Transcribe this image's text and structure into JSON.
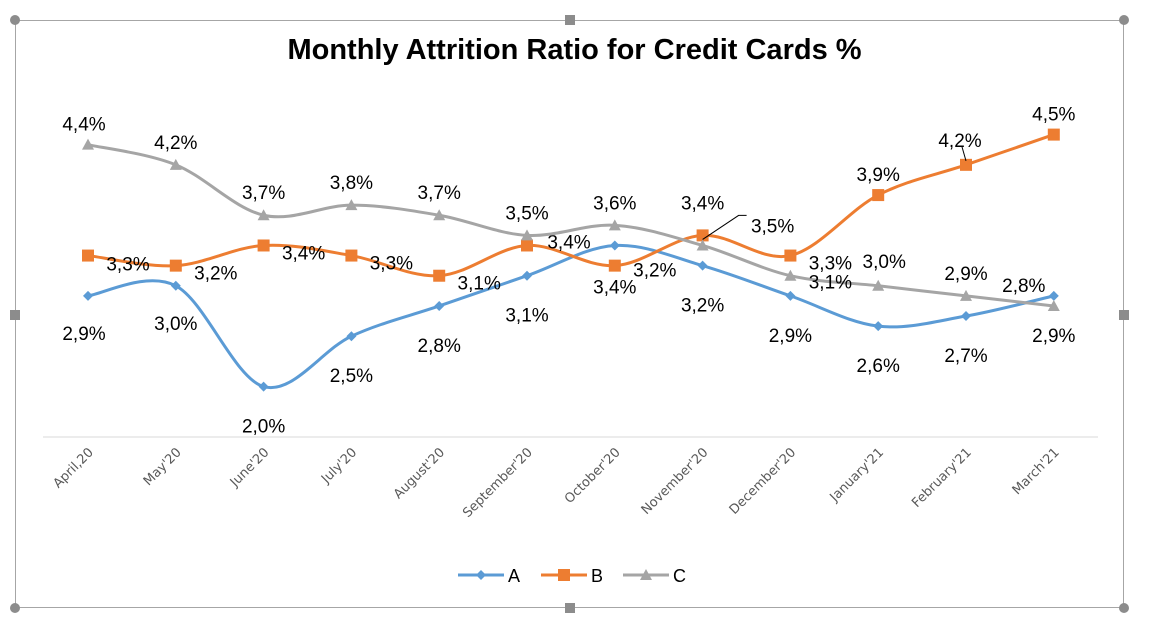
{
  "chart_data": {
    "type": "line",
    "title": "Monthly Attrition Ratio for Credit Cards %",
    "categories": [
      "April,20",
      "May'20",
      "June'20",
      "July'20",
      "August'20",
      "September'20",
      "October'20",
      "November'20",
      "December'20",
      "January'21",
      "February'21",
      "March'21"
    ],
    "ylim": [
      1.5,
      5.0
    ],
    "grid": false,
    "legend": "bottom",
    "smooth": true,
    "series": [
      {
        "name": "A",
        "color": "#5b9bd5",
        "marker": "diamond",
        "values": [
          2.9,
          3.0,
          2.0,
          2.5,
          2.8,
          3.1,
          3.4,
          3.2,
          2.9,
          2.6,
          2.7,
          2.9
        ],
        "labels": [
          "2,9%",
          "3,0%",
          "2,0%",
          "2,5%",
          "2,8%",
          "3,1%",
          "3,4%",
          "3,2%",
          "2,9%",
          "2,6%",
          "2,7%",
          "2,9%"
        ]
      },
      {
        "name": "B",
        "color": "#ed7d31",
        "marker": "square",
        "values": [
          3.3,
          3.2,
          3.4,
          3.3,
          3.1,
          3.4,
          3.2,
          3.5,
          3.3,
          3.9,
          4.2,
          4.5
        ],
        "labels": [
          "3,3%",
          "3,2%",
          "3,4%",
          "3,3%",
          "3,1%",
          "3,4%",
          "3,2%",
          "3,5%",
          "3,3%",
          "3,9%",
          "4,2%",
          "4,5%"
        ]
      },
      {
        "name": "C",
        "color": "#a5a5a5",
        "marker": "triangle",
        "values": [
          4.4,
          4.2,
          3.7,
          3.8,
          3.7,
          3.5,
          3.6,
          3.4,
          3.1,
          3.0,
          2.9,
          2.8
        ],
        "labels": [
          "4,4%",
          "4,2%",
          "3,7%",
          "3,8%",
          "3,7%",
          "3,5%",
          "3,6%",
          "3,4%",
          "3,1%",
          "3,0%",
          "2,9%",
          "2,8%"
        ]
      }
    ]
  }
}
